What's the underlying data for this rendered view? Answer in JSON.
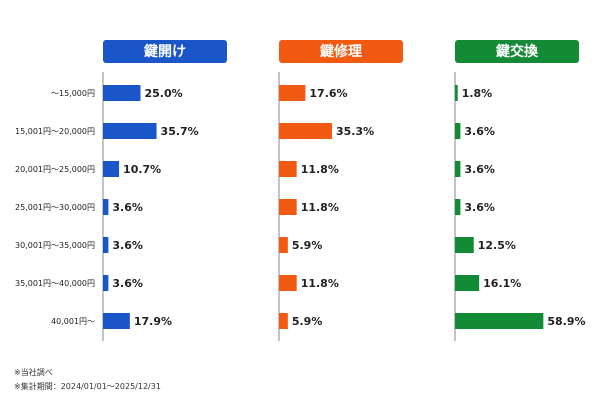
{
  "chart_data": {
    "type": "bar",
    "orientation": "horizontal",
    "categories": [
      "～15,000円",
      "15,001円～20,000円",
      "20,001円～25,000円",
      "25,001円～30,000円",
      "30,001円～35,000円",
      "35,001円～40,000円",
      "40,001円～"
    ],
    "series": [
      {
        "name": "鍵開け",
        "color": "#1a56c8",
        "values": [
          25.0,
          35.7,
          10.7,
          3.6,
          3.6,
          3.6,
          17.9
        ],
        "labels": [
          "25.0%",
          "35.7%",
          "10.7%",
          "3.6%",
          "3.6%",
          "3.6%",
          "17.9%"
        ]
      },
      {
        "name": "鍵修理",
        "color": "#f25a12",
        "values": [
          17.6,
          35.3,
          11.8,
          11.8,
          5.9,
          11.8,
          5.9
        ],
        "labels": [
          "17.6%",
          "35.3%",
          "11.8%",
          "11.8%",
          "5.9%",
          "11.8%",
          "5.9%"
        ]
      },
      {
        "name": "鍵交換",
        "color": "#138a35",
        "values": [
          1.8,
          3.6,
          3.6,
          3.6,
          12.5,
          16.1,
          58.9
        ],
        "labels": [
          "1.8%",
          "3.6%",
          "3.6%",
          "3.6%",
          "12.5%",
          "16.1%",
          "58.9%"
        ]
      }
    ],
    "unit": "%",
    "grid": false,
    "legend": "none"
  },
  "notes": [
    "※当社調べ",
    "※集計期間：2024/01/01～2025/12/31"
  ]
}
